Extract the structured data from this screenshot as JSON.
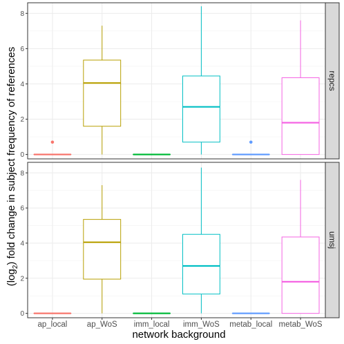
{
  "chart_data": {
    "type": "boxplot",
    "xlabel": "network background",
    "ylabel_parts": {
      "prefix": "(log",
      "subscript": "2",
      "suffix": ") fold change in subject frequency of references"
    },
    "categories": [
      "ap_local",
      "ap_WoS",
      "imm_local",
      "imm_WoS",
      "metab_local",
      "metab_WoS"
    ],
    "colors": [
      "#F8766D",
      "#B79F00",
      "#00BA38",
      "#00BFC4",
      "#619CFF",
      "#F564E3"
    ],
    "ylim": [
      -0.25,
      8.6
    ],
    "yticks": [
      0,
      2,
      4,
      6,
      8
    ],
    "y_tick_labels": [
      "0",
      "2",
      "4",
      "6",
      "8"
    ],
    "grid": true,
    "panels": [
      {
        "strip": "repcs",
        "boxes": [
          {
            "category": "ap_local",
            "min": 0,
            "q1": 0,
            "median": 0,
            "q3": 0,
            "max": 0,
            "outliers": [
              0.7
            ]
          },
          {
            "category": "ap_WoS",
            "min": 0,
            "q1": 1.6,
            "median": 4.05,
            "q3": 5.35,
            "max": 7.3,
            "outliers": []
          },
          {
            "category": "imm_local",
            "min": 0,
            "q1": 0,
            "median": 0,
            "q3": 0,
            "max": 0,
            "outliers": []
          },
          {
            "category": "imm_WoS",
            "min": 0,
            "q1": 0.7,
            "median": 2.7,
            "q3": 4.45,
            "max": 8.4,
            "outliers": []
          },
          {
            "category": "metab_local",
            "min": 0,
            "q1": 0,
            "median": 0,
            "q3": 0,
            "max": 0,
            "outliers": [
              0.7
            ]
          },
          {
            "category": "metab_WoS",
            "min": 0,
            "q1": 0,
            "median": 1.8,
            "q3": 4.35,
            "max": 7.6,
            "outliers": []
          }
        ]
      },
      {
        "strip": "umsj",
        "boxes": [
          {
            "category": "ap_local",
            "min": 0,
            "q1": 0,
            "median": 0,
            "q3": 0,
            "max": 0,
            "outliers": []
          },
          {
            "category": "ap_WoS",
            "min": 0,
            "q1": 1.95,
            "median": 4.05,
            "q3": 5.35,
            "max": 7.3,
            "outliers": []
          },
          {
            "category": "imm_local",
            "min": 0,
            "q1": 0,
            "median": 0,
            "q3": 0,
            "max": 0,
            "outliers": []
          },
          {
            "category": "imm_WoS",
            "min": 0,
            "q1": 1.1,
            "median": 2.7,
            "q3": 4.5,
            "max": 8.3,
            "outliers": []
          },
          {
            "category": "metab_local",
            "min": 0,
            "q1": 0,
            "median": 0,
            "q3": 0,
            "max": 0,
            "outliers": []
          },
          {
            "category": "metab_WoS",
            "min": 0,
            "q1": 0,
            "median": 1.8,
            "q3": 4.35,
            "max": 7.6,
            "outliers": []
          }
        ]
      }
    ]
  }
}
